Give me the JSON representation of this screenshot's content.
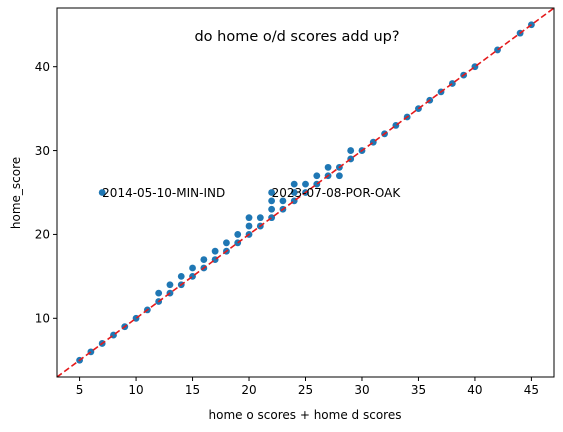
{
  "chart_data": {
    "type": "scatter",
    "title": "do home o/d scores add up?",
    "xlabel": "home o scores + home d scores",
    "ylabel": "home_score",
    "xlim": [
      3.0,
      47.0
    ],
    "ylim": [
      3.0,
      47.0
    ],
    "xticks": [
      5,
      10,
      15,
      20,
      25,
      30,
      35,
      40,
      45
    ],
    "yticks": [
      10,
      20,
      30,
      40
    ],
    "grid": false,
    "point_color": "#1f77b4",
    "reference_line": {
      "style": "dashed",
      "color": "#e41a1c",
      "slope": 1,
      "intercept": 0
    },
    "series": [
      {
        "points": [
          [
            5,
            5
          ],
          [
            6,
            6
          ],
          [
            7,
            7
          ],
          [
            8,
            8
          ],
          [
            9,
            9
          ],
          [
            10,
            10
          ],
          [
            11,
            11
          ],
          [
            12,
            12
          ],
          [
            12,
            13
          ],
          [
            13,
            13
          ],
          [
            13,
            14
          ],
          [
            14,
            14
          ],
          [
            14,
            15
          ],
          [
            15,
            15
          ],
          [
            15,
            16
          ],
          [
            16,
            16
          ],
          [
            16,
            17
          ],
          [
            17,
            17
          ],
          [
            17,
            18
          ],
          [
            18,
            18
          ],
          [
            18,
            19
          ],
          [
            19,
            19
          ],
          [
            19,
            20
          ],
          [
            20,
            20
          ],
          [
            20,
            21
          ],
          [
            20,
            22
          ],
          [
            21,
            21
          ],
          [
            21,
            22
          ],
          [
            22,
            22
          ],
          [
            22,
            23
          ],
          [
            22,
            24
          ],
          [
            22,
            25
          ],
          [
            23,
            23
          ],
          [
            23,
            24
          ],
          [
            24,
            24
          ],
          [
            24,
            25
          ],
          [
            24,
            26
          ],
          [
            25,
            25
          ],
          [
            25,
            26
          ],
          [
            26,
            26
          ],
          [
            26,
            27
          ],
          [
            27,
            27
          ],
          [
            27,
            28
          ],
          [
            28,
            27
          ],
          [
            28,
            28
          ],
          [
            29,
            29
          ],
          [
            29,
            30
          ],
          [
            30,
            30
          ],
          [
            31,
            31
          ],
          [
            32,
            32
          ],
          [
            33,
            33
          ],
          [
            34,
            34
          ],
          [
            35,
            35
          ],
          [
            36,
            36
          ],
          [
            37,
            37
          ],
          [
            38,
            38
          ],
          [
            39,
            39
          ],
          [
            40,
            40
          ],
          [
            42,
            42
          ],
          [
            44,
            44
          ],
          [
            45,
            45
          ],
          [
            7,
            25
          ]
        ]
      }
    ],
    "annotations": [
      {
        "text": "2014-05-10-MIN-IND",
        "x": 7,
        "y": 25
      },
      {
        "text": "2023-07-08-POR-OAK",
        "x": 22,
        "y": 25
      }
    ]
  }
}
